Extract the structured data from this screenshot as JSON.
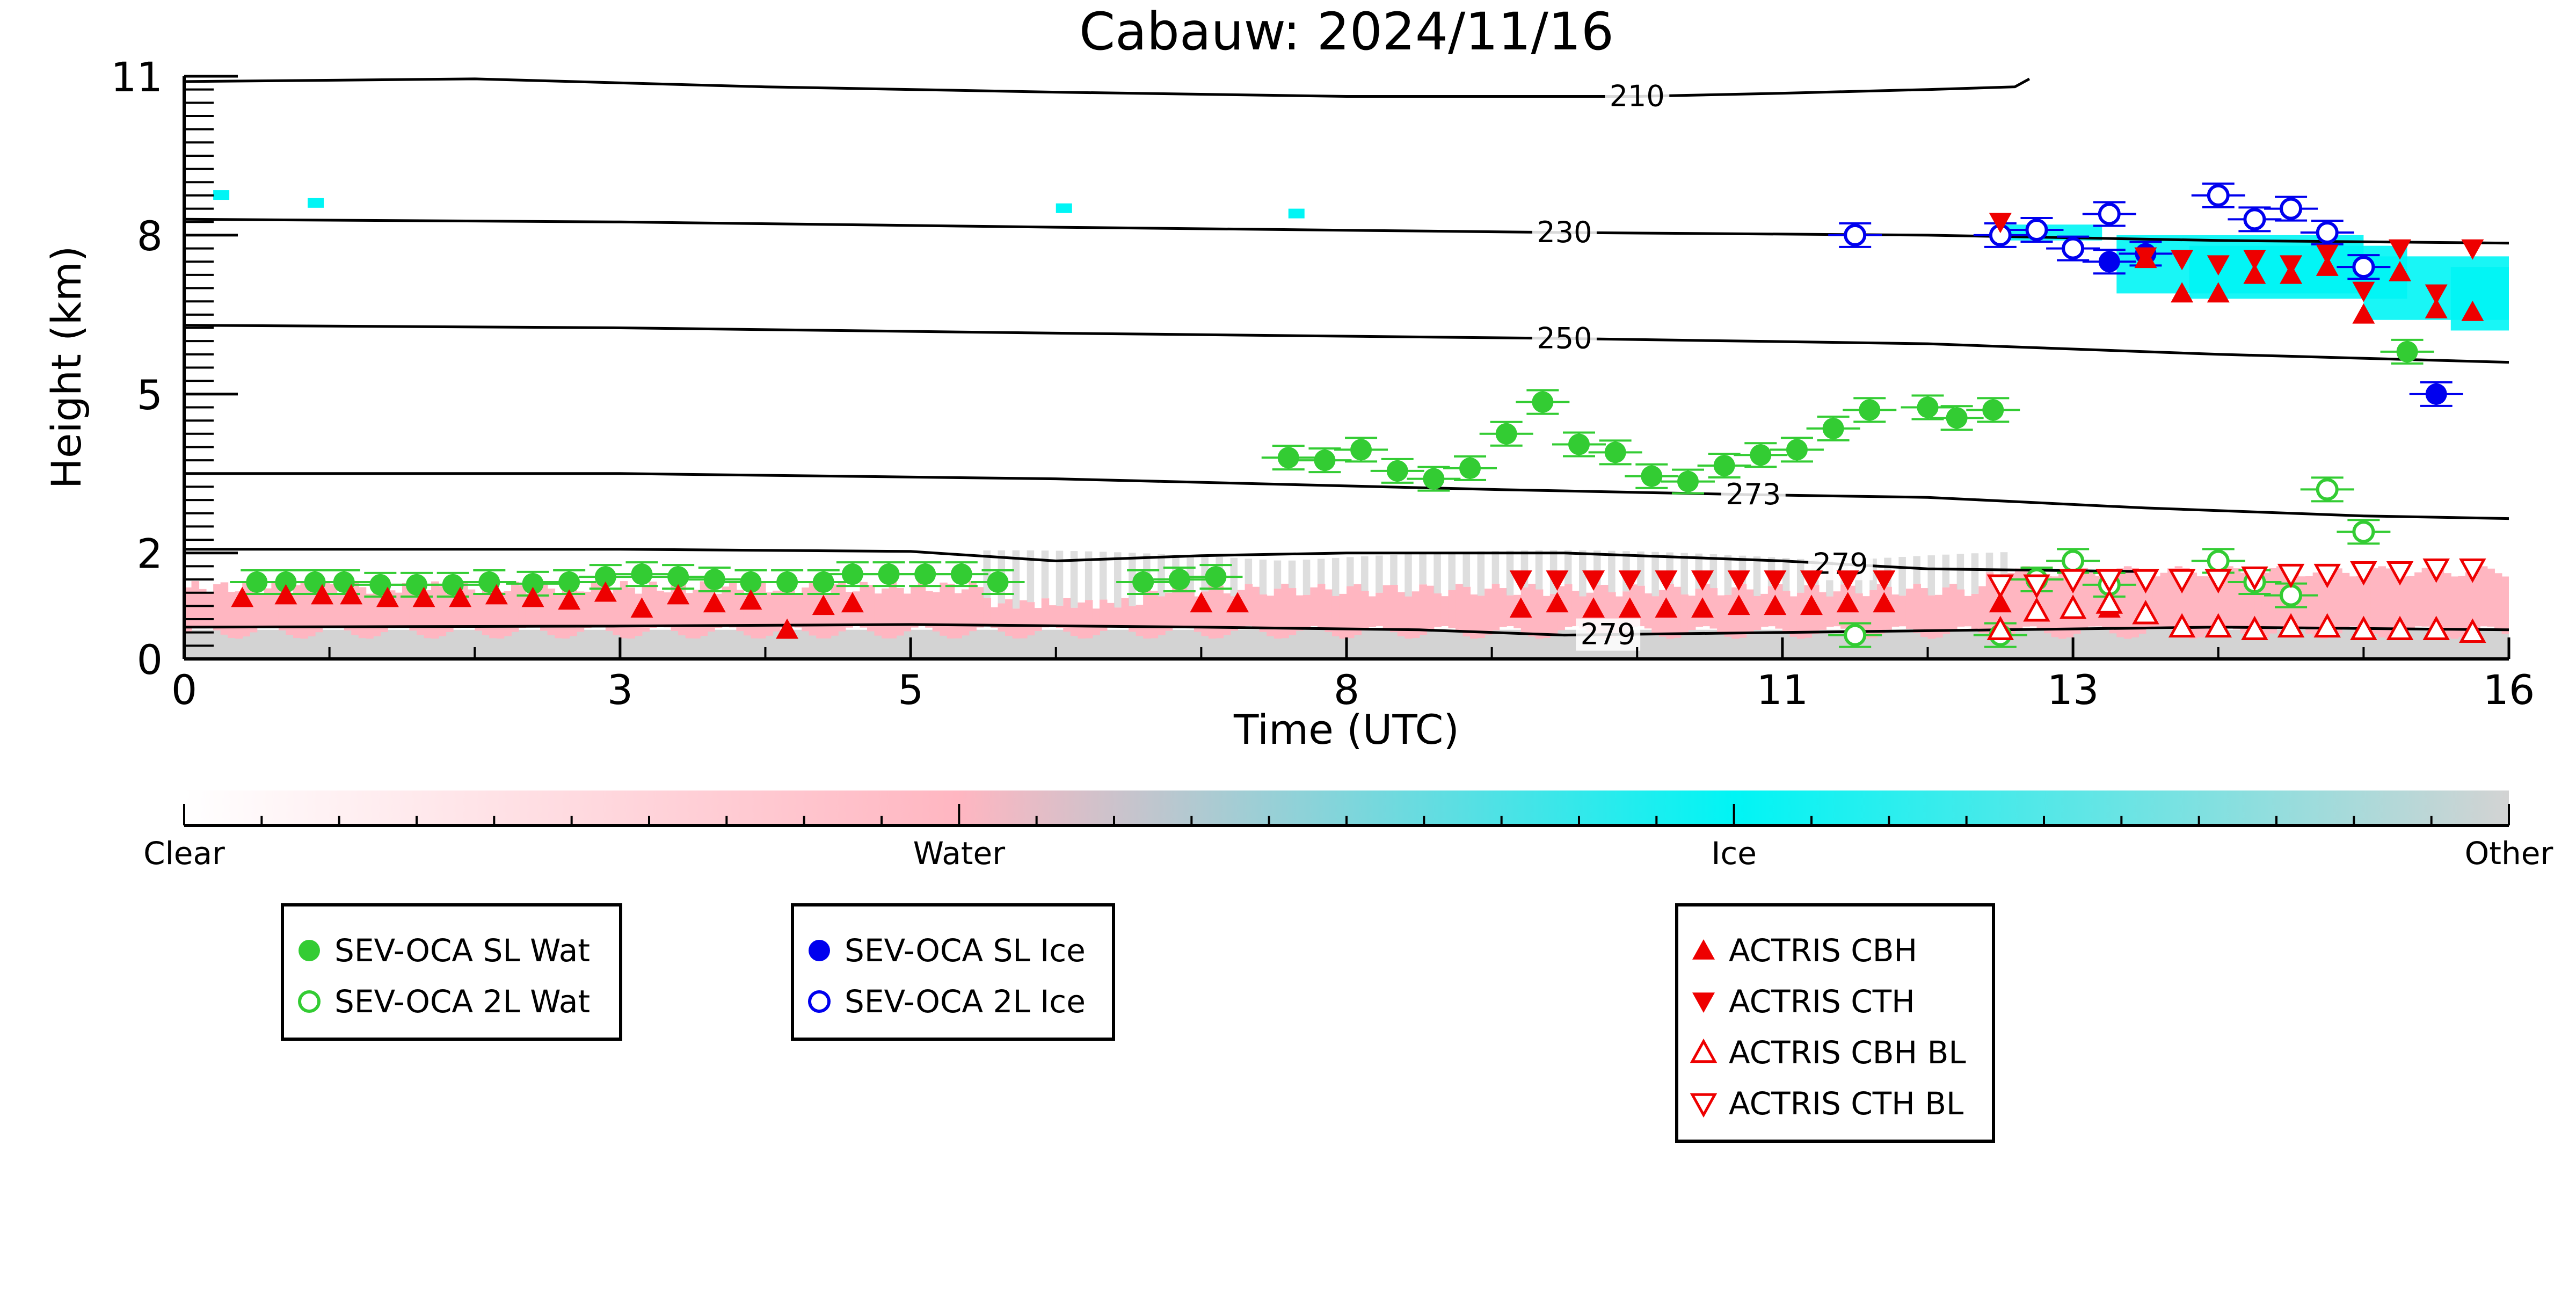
{
  "chart_data": {
    "type": "scatter",
    "title": "Cabauw: 2024/11/16",
    "xlabel": "Time (UTC)",
    "ylabel": "Height (km)",
    "xlim": [
      0,
      16
    ],
    "ylim": [
      0,
      11
    ],
    "x_ticks": [
      0,
      3,
      5,
      8,
      11,
      13,
      16
    ],
    "y_ticks": [
      0,
      2,
      5,
      8,
      11
    ],
    "grid": false,
    "colors": {
      "sev_water": "#33cc33",
      "sev_ice": "#0000ee",
      "actris": "#ee0000",
      "clear": "#ffffff",
      "water": "#ffb6c1",
      "ice": "#00f5f5",
      "other": "#d3d3d3",
      "contour": "#000000"
    },
    "colorbar": {
      "labels": [
        "Clear",
        "Water",
        "Ice",
        "Other"
      ]
    },
    "temperature_contours": [
      {
        "label": "210",
        "label_x": 10.0,
        "points": [
          [
            0.0,
            10.9
          ],
          [
            2.0,
            10.95
          ],
          [
            4.0,
            10.8
          ],
          [
            6.0,
            10.7
          ],
          [
            8.0,
            10.62
          ],
          [
            10.0,
            10.62
          ],
          [
            11.0,
            10.68
          ],
          [
            12.0,
            10.75
          ],
          [
            12.6,
            10.8
          ],
          [
            12.7,
            10.95
          ]
        ]
      },
      {
        "label": "230",
        "label_x": 9.5,
        "points": [
          [
            0.0,
            8.3
          ],
          [
            3.0,
            8.25
          ],
          [
            6.0,
            8.15
          ],
          [
            9.5,
            8.05
          ],
          [
            12.0,
            8.0
          ],
          [
            14.0,
            7.9
          ],
          [
            16.0,
            7.85
          ]
        ]
      },
      {
        "label": "250",
        "label_x": 9.5,
        "points": [
          [
            0.0,
            6.3
          ],
          [
            3.0,
            6.25
          ],
          [
            6.0,
            6.15
          ],
          [
            9.5,
            6.05
          ],
          [
            12.0,
            5.95
          ],
          [
            14.0,
            5.75
          ],
          [
            16.0,
            5.6
          ]
        ]
      },
      {
        "label": "273",
        "label_x": 10.8,
        "points": [
          [
            0.0,
            3.5
          ],
          [
            3.0,
            3.5
          ],
          [
            6.0,
            3.4
          ],
          [
            9.0,
            3.2
          ],
          [
            10.8,
            3.1
          ],
          [
            12.0,
            3.05
          ],
          [
            13.5,
            2.85
          ],
          [
            15.0,
            2.7
          ],
          [
            16.0,
            2.65
          ]
        ]
      },
      {
        "label": "279",
        "label_x": 11.4,
        "points": [
          [
            0.0,
            2.07
          ],
          [
            3.0,
            2.07
          ],
          [
            5.0,
            2.03
          ],
          [
            6.0,
            1.85
          ],
          [
            7.0,
            1.95
          ],
          [
            8.0,
            2.0
          ],
          [
            9.5,
            2.0
          ],
          [
            11.0,
            1.85
          ],
          [
            12.0,
            1.7
          ],
          [
            13.5,
            1.65
          ]
        ]
      },
      {
        "label": "279",
        "label_x": 9.8,
        "points": [
          [
            0.0,
            0.6
          ],
          [
            3.0,
            0.62
          ],
          [
            5.0,
            0.65
          ],
          [
            7.0,
            0.6
          ],
          [
            8.5,
            0.55
          ],
          [
            9.5,
            0.45
          ],
          [
            11.0,
            0.5
          ],
          [
            12.5,
            0.55
          ],
          [
            14.0,
            0.6
          ],
          [
            16.0,
            0.55
          ]
        ]
      }
    ],
    "series": [
      {
        "name": "SEV-OCA SL Wat",
        "marker": "circle-filled",
        "color": "#33cc33",
        "points": [
          [
            0.5,
            1.45
          ],
          [
            0.7,
            1.45
          ],
          [
            0.9,
            1.45
          ],
          [
            1.1,
            1.45
          ],
          [
            1.35,
            1.4
          ],
          [
            1.6,
            1.4
          ],
          [
            1.85,
            1.4
          ],
          [
            2.1,
            1.45
          ],
          [
            2.4,
            1.42
          ],
          [
            2.65,
            1.45
          ],
          [
            2.9,
            1.55
          ],
          [
            3.15,
            1.6
          ],
          [
            3.4,
            1.55
          ],
          [
            3.65,
            1.5
          ],
          [
            3.9,
            1.45
          ],
          [
            4.15,
            1.45
          ],
          [
            4.4,
            1.45
          ],
          [
            4.6,
            1.6
          ],
          [
            4.85,
            1.6
          ],
          [
            5.1,
            1.6
          ],
          [
            5.35,
            1.6
          ],
          [
            5.6,
            1.45
          ],
          [
            6.6,
            1.45
          ],
          [
            6.85,
            1.5
          ],
          [
            7.1,
            1.55
          ],
          [
            7.6,
            3.8
          ],
          [
            7.85,
            3.75
          ],
          [
            8.1,
            3.95
          ],
          [
            8.35,
            3.55
          ],
          [
            8.6,
            3.4
          ],
          [
            8.85,
            3.6
          ],
          [
            9.1,
            4.25
          ],
          [
            9.35,
            4.85
          ],
          [
            9.6,
            4.05
          ],
          [
            9.85,
            3.9
          ],
          [
            10.1,
            3.45
          ],
          [
            10.35,
            3.35
          ],
          [
            10.6,
            3.65
          ],
          [
            10.85,
            3.85
          ],
          [
            11.1,
            3.95
          ],
          [
            11.35,
            4.35
          ],
          [
            11.6,
            4.7
          ],
          [
            12.0,
            4.75
          ],
          [
            12.2,
            4.55
          ],
          [
            12.45,
            4.7
          ],
          [
            15.3,
            5.8
          ]
        ]
      },
      {
        "name": "SEV-OCA 2L Wat",
        "marker": "circle-open",
        "color": "#33cc33",
        "points": [
          [
            11.5,
            0.45
          ],
          [
            12.5,
            0.45
          ],
          [
            12.75,
            1.5
          ],
          [
            13.0,
            1.85
          ],
          [
            13.25,
            1.4
          ],
          [
            14.0,
            1.85
          ],
          [
            14.25,
            1.45
          ],
          [
            14.5,
            1.2
          ],
          [
            14.75,
            3.2
          ],
          [
            15.0,
            2.4
          ]
        ]
      },
      {
        "name": "SEV-OCA SL Ice",
        "marker": "circle-filled",
        "color": "#0000ee",
        "points": [
          [
            13.25,
            7.5
          ],
          [
            13.5,
            7.65
          ],
          [
            15.5,
            5.0
          ]
        ]
      },
      {
        "name": "SEV-OCA 2L Ice",
        "marker": "circle-open",
        "color": "#0000ee",
        "points": [
          [
            11.5,
            8.0
          ],
          [
            12.5,
            8.0
          ],
          [
            12.75,
            8.1
          ],
          [
            13.0,
            7.75
          ],
          [
            13.25,
            8.4
          ],
          [
            14.0,
            8.75
          ],
          [
            14.25,
            8.3
          ],
          [
            14.5,
            8.5
          ],
          [
            14.75,
            8.05
          ],
          [
            15.0,
            7.4
          ]
        ]
      },
      {
        "name": "ACTRIS CBH",
        "marker": "triangle-up-filled",
        "color": "#ee0000",
        "points": [
          [
            0.4,
            1.15
          ],
          [
            0.7,
            1.2
          ],
          [
            0.95,
            1.2
          ],
          [
            1.15,
            1.2
          ],
          [
            1.4,
            1.15
          ],
          [
            1.65,
            1.15
          ],
          [
            1.9,
            1.15
          ],
          [
            2.15,
            1.2
          ],
          [
            2.4,
            1.15
          ],
          [
            2.65,
            1.1
          ],
          [
            2.9,
            1.25
          ],
          [
            3.15,
            0.95
          ],
          [
            3.4,
            1.2
          ],
          [
            3.65,
            1.05
          ],
          [
            3.9,
            1.1
          ],
          [
            4.15,
            0.55
          ],
          [
            4.4,
            1.0
          ],
          [
            4.6,
            1.05
          ],
          [
            7.0,
            1.05
          ],
          [
            7.25,
            1.05
          ],
          [
            9.2,
            0.95
          ],
          [
            9.45,
            1.05
          ],
          [
            9.7,
            0.95
          ],
          [
            9.95,
            0.95
          ],
          [
            10.2,
            0.95
          ],
          [
            10.45,
            0.95
          ],
          [
            10.7,
            1.0
          ],
          [
            10.95,
            1.0
          ],
          [
            11.2,
            1.0
          ],
          [
            11.45,
            1.05
          ],
          [
            11.7,
            1.05
          ],
          [
            12.5,
            1.05
          ],
          [
            12.75,
            0.95
          ],
          [
            13.0,
            1.0
          ],
          [
            13.25,
            0.95
          ],
          [
            13.5,
            7.55
          ],
          [
            13.75,
            6.9
          ],
          [
            14.0,
            6.9
          ],
          [
            14.25,
            7.25
          ],
          [
            14.5,
            7.25
          ],
          [
            14.75,
            7.4
          ],
          [
            15.0,
            6.5
          ],
          [
            15.25,
            7.3
          ],
          [
            15.5,
            6.6
          ],
          [
            15.75,
            6.55
          ]
        ]
      },
      {
        "name": "ACTRIS CTH",
        "marker": "triangle-down-filled",
        "color": "#ee0000",
        "points": [
          [
            9.2,
            1.5
          ],
          [
            9.45,
            1.5
          ],
          [
            9.7,
            1.5
          ],
          [
            9.95,
            1.5
          ],
          [
            10.2,
            1.5
          ],
          [
            10.45,
            1.5
          ],
          [
            10.7,
            1.5
          ],
          [
            10.95,
            1.5
          ],
          [
            11.2,
            1.5
          ],
          [
            11.45,
            1.5
          ],
          [
            11.7,
            1.5
          ],
          [
            12.5,
            8.25
          ],
          [
            13.5,
            7.6
          ],
          [
            13.75,
            7.55
          ],
          [
            14.0,
            7.45
          ],
          [
            14.25,
            7.55
          ],
          [
            14.5,
            7.45
          ],
          [
            14.75,
            7.65
          ],
          [
            15.0,
            6.95
          ],
          [
            15.25,
            7.75
          ],
          [
            15.5,
            6.9
          ],
          [
            15.75,
            7.75
          ]
        ]
      },
      {
        "name": "ACTRIS CBH BL",
        "marker": "triangle-up-open",
        "color": "#ee0000",
        "points": [
          [
            12.5,
            0.55
          ],
          [
            12.75,
            0.9
          ],
          [
            13.0,
            0.95
          ],
          [
            13.25,
            1.05
          ],
          [
            13.5,
            0.85
          ],
          [
            13.75,
            0.6
          ],
          [
            14.0,
            0.6
          ],
          [
            14.25,
            0.55
          ],
          [
            14.5,
            0.6
          ],
          [
            14.75,
            0.6
          ],
          [
            15.0,
            0.55
          ],
          [
            15.25,
            0.55
          ],
          [
            15.5,
            0.55
          ],
          [
            15.75,
            0.5
          ]
        ]
      },
      {
        "name": "ACTRIS CTH BL",
        "marker": "triangle-down-open",
        "color": "#ee0000",
        "points": [
          [
            12.5,
            1.4
          ],
          [
            12.75,
            1.4
          ],
          [
            13.0,
            1.5
          ],
          [
            13.25,
            1.5
          ],
          [
            13.5,
            1.5
          ],
          [
            13.75,
            1.5
          ],
          [
            14.0,
            1.5
          ],
          [
            14.25,
            1.55
          ],
          [
            14.5,
            1.6
          ],
          [
            14.75,
            1.6
          ],
          [
            15.0,
            1.65
          ],
          [
            15.25,
            1.65
          ],
          [
            15.5,
            1.7
          ],
          [
            15.75,
            1.7
          ]
        ]
      }
    ],
    "legends": [
      {
        "entries": [
          "SEV-OCA SL Wat",
          "SEV-OCA 2L Wat"
        ]
      },
      {
        "entries": [
          "SEV-OCA SL Ice",
          "SEV-OCA 2L Ice"
        ]
      },
      {
        "entries": [
          "ACTRIS CBH",
          "ACTRIS CTH",
          "ACTRIS CBH BL",
          "ACTRIS CTH BL"
        ]
      }
    ]
  }
}
